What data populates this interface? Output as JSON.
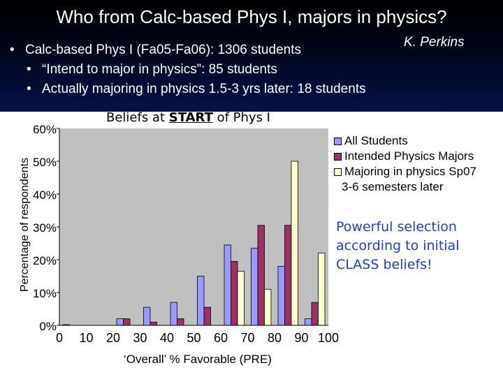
{
  "slide": {
    "title": "Who from Calc-based Phys I, majors in physics?",
    "author": "K. Perkins",
    "bullets": [
      {
        "text": "Calc-based Phys I (Fa05-Fa06): 1306 students",
        "level": 1
      },
      {
        "text": "“Intend to major in physics”: 85 students",
        "level": 2
      },
      {
        "text": "Actually majoring in physics 1.5-3 yrs later: 18 students",
        "level": 2
      }
    ],
    "callout": "Powerful selection according to initial CLASS beliefs!"
  },
  "chart_data": {
    "type": "bar",
    "title_pre": "Beliefs at ",
    "title_strong": "START",
    "title_post": " of Phys I",
    "xlabel": "‘Overall’ % Favorable (PRE)",
    "ylabel": "Percentage of respondents",
    "ylim": [
      0,
      60
    ],
    "yticks": [
      "0%",
      "10%",
      "20%",
      "30%",
      "40%",
      "50%",
      "60%"
    ],
    "xticks": [
      "0",
      "10",
      "20",
      "30",
      "40",
      "50",
      "60",
      "70",
      "80",
      "90",
      "100"
    ],
    "categories": [
      "0-10",
      "10-20",
      "20-30",
      "30-40",
      "40-50",
      "50-60",
      "60-70",
      "70-80",
      "80-90",
      "90-100"
    ],
    "series": [
      {
        "name": "All Students",
        "color": "#9999ff",
        "values": [
          0.2,
          0,
          2,
          5.5,
          7,
          15,
          24.5,
          23.5,
          18,
          2
        ]
      },
      {
        "name": "Intended Physics Majors",
        "color": "#993366",
        "values": [
          0,
          0,
          2,
          1,
          2,
          5.5,
          19.5,
          30.5,
          30.5,
          7
        ]
      },
      {
        "name": "Majoring in physics Sp07",
        "color": "#ffffcc",
        "values": [
          0,
          0,
          0,
          0,
          0,
          0,
          16.5,
          11,
          50,
          22
        ]
      }
    ],
    "legend_note": "3-6 semesters later",
    "legend_position": "right"
  }
}
